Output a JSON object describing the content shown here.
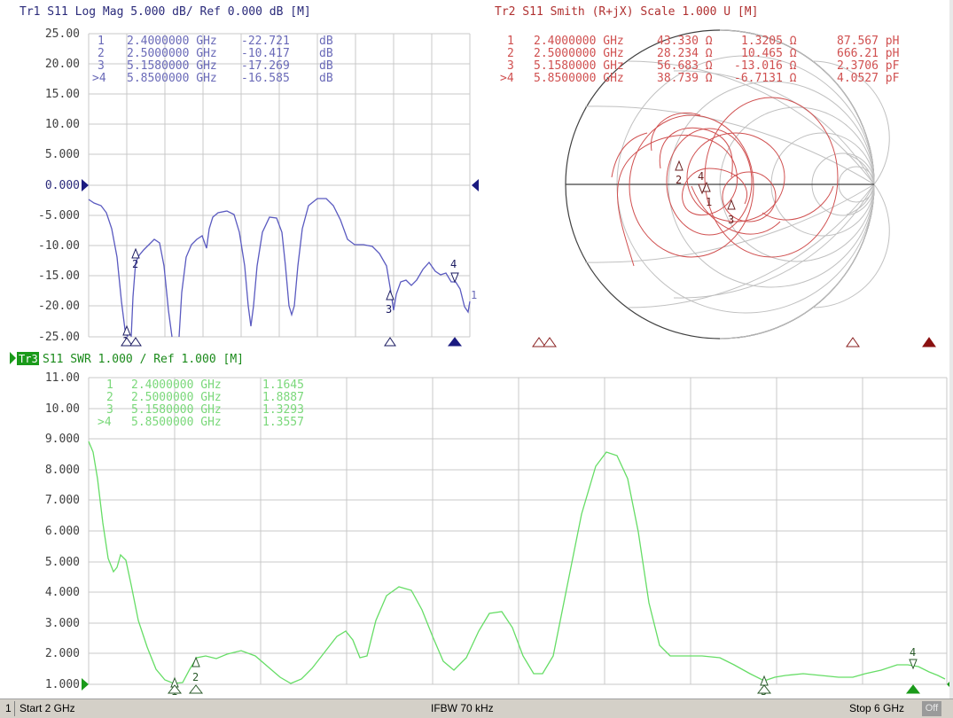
{
  "trace1": {
    "header": "Tr1 S11 Log Mag 5.000 dB/ Ref 0.000 dB [M]",
    "color": "#5a5aa8",
    "axis_labels": [
      "25.00",
      "20.00",
      "15.00",
      "10.00",
      "5.000",
      "0.000",
      "-5.000",
      "-10.00",
      "-15.00",
      "-20.00",
      "-25.00"
    ],
    "markers": [
      {
        "num": "1",
        "freq": "2.4000000 GHz",
        "value": "-22.721",
        "unit": "dB"
      },
      {
        "num": "2",
        "freq": "2.5000000 GHz",
        "value": "-10.417",
        "unit": "dB"
      },
      {
        "num": "3",
        "freq": "5.1580000 GHz",
        "value": "-17.269",
        "unit": "dB"
      },
      {
        "num": ">4",
        "freq": "5.8500000 GHz",
        "value": "-16.585",
        "unit": "dB"
      }
    ],
    "trace_end_label": "1"
  },
  "trace2": {
    "header": "Tr2 S11 Smith (R+jX) Scale 1.000 U [M]",
    "color": "#d05050",
    "markers": [
      {
        "num": "1",
        "freq": "2.4000000 GHz",
        "r": "43.330 Ω",
        "x": "1.3205 Ω",
        "el": "87.567 pH"
      },
      {
        "num": "2",
        "freq": "2.5000000 GHz",
        "r": "28.234 Ω",
        "x": "10.465 Ω",
        "el": "666.21 pH"
      },
      {
        "num": "3",
        "freq": "5.1580000 GHz",
        "r": "56.683 Ω",
        "x": "-13.016 Ω",
        "el": "2.3706 pF"
      },
      {
        "num": ">4",
        "freq": "5.8500000 GHz",
        "r": "38.739 Ω",
        "x": "-6.7131 Ω",
        "el": "4.0527 pF"
      }
    ]
  },
  "trace3": {
    "tag": "Tr3",
    "header": "S11 SWR 1.000 / Ref 1.000 [M]",
    "color": "#66dd66",
    "axis_labels": [
      "11.00",
      "10.00",
      "9.000",
      "8.000",
      "7.000",
      "6.000",
      "5.000",
      "4.000",
      "3.000",
      "2.000",
      "1.000"
    ],
    "markers": [
      {
        "num": "1",
        "freq": "2.4000000 GHz",
        "value": "1.1645"
      },
      {
        "num": "2",
        "freq": "2.5000000 GHz",
        "value": "1.8887"
      },
      {
        "num": "3",
        "freq": "5.1580000 GHz",
        "value": "1.3293"
      },
      {
        "num": ">4",
        "freq": "5.8500000 GHz",
        "value": "1.3557"
      }
    ]
  },
  "status": {
    "channel": "1",
    "start": "Start 2 GHz",
    "ifbw": "IFBW 70 kHz",
    "stop": "Stop 6 GHz",
    "off": "Off"
  }
}
